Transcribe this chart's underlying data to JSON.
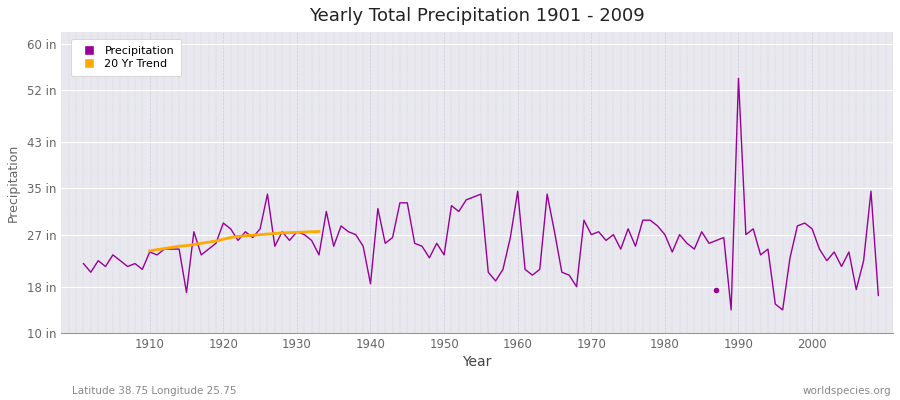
{
  "title": "Yearly Total Precipitation 1901 - 2009",
  "xlabel": "Year",
  "ylabel": "Precipitation",
  "subtitle": "Latitude 38.75 Longitude 25.75",
  "watermark": "worldspecies.org",
  "ylim": [
    10,
    62
  ],
  "yticks": [
    10,
    18,
    27,
    35,
    43,
    52,
    60
  ],
  "ytick_labels": [
    "10 in",
    "18 in",
    "27 in",
    "35 in",
    "43 in",
    "52 in",
    "60 in"
  ],
  "xlim": [
    1898,
    2011
  ],
  "xticks": [
    1910,
    1920,
    1930,
    1940,
    1950,
    1960,
    1970,
    1980,
    1990,
    2000
  ],
  "precip_color": "#990099",
  "trend_color": "#ffaa00",
  "bg_color": "#e8e8ee",
  "fig_color": "#ffffff",
  "years": [
    1901,
    1902,
    1903,
    1904,
    1905,
    1906,
    1907,
    1908,
    1909,
    1910,
    1911,
    1912,
    1913,
    1914,
    1915,
    1916,
    1917,
    1918,
    1919,
    1920,
    1921,
    1922,
    1923,
    1924,
    1925,
    1926,
    1927,
    1928,
    1929,
    1930,
    1931,
    1932,
    1933,
    1934,
    1935,
    1936,
    1937,
    1938,
    1939,
    1940,
    1941,
    1942,
    1943,
    1944,
    1945,
    1946,
    1947,
    1948,
    1949,
    1950,
    1951,
    1952,
    1953,
    1954,
    1955,
    1956,
    1957,
    1958,
    1959,
    1960,
    1961,
    1962,
    1963,
    1964,
    1965,
    1966,
    1967,
    1968,
    1969,
    1970,
    1971,
    1972,
    1973,
    1974,
    1975,
    1976,
    1977,
    1978,
    1979,
    1980,
    1981,
    1982,
    1983,
    1984,
    1985,
    1986,
    1987,
    1988,
    1989,
    1990,
    1991,
    1992,
    1993,
    1994,
    1995,
    1996,
    1997,
    1998,
    1999,
    2000,
    2001,
    2002,
    2003,
    2004,
    2005,
    2006,
    2007,
    2008,
    2009
  ],
  "precip_in": [
    22.0,
    20.5,
    22.5,
    21.5,
    23.5,
    22.5,
    21.5,
    22.0,
    21.0,
    24.0,
    23.5,
    24.5,
    24.5,
    24.5,
    17.0,
    27.5,
    23.5,
    24.5,
    25.5,
    29.0,
    28.0,
    26.0,
    27.5,
    26.5,
    28.0,
    34.0,
    25.0,
    27.5,
    26.0,
    27.5,
    27.0,
    26.0,
    23.5,
    31.0,
    25.0,
    28.5,
    27.5,
    27.0,
    25.0,
    18.5,
    31.5,
    25.5,
    26.5,
    32.5,
    32.5,
    25.5,
    25.0,
    23.0,
    25.5,
    23.5,
    32.0,
    31.0,
    33.0,
    33.5,
    34.0,
    20.5,
    19.0,
    21.0,
    26.5,
    34.5,
    21.0,
    20.0,
    21.0,
    34.0,
    27.5,
    20.5,
    20.0,
    18.0,
    29.5,
    27.0,
    27.5,
    26.0,
    27.0,
    24.5,
    28.0,
    25.0,
    29.5,
    29.5,
    28.5,
    27.0,
    24.0,
    27.0,
    25.5,
    24.5,
    27.5,
    25.5,
    26.0,
    26.5,
    14.0,
    54.0,
    27.0,
    28.0,
    23.5,
    24.5,
    15.0,
    14.0,
    23.0,
    28.5,
    29.0,
    28.0,
    24.5,
    22.5,
    24.0,
    21.5,
    24.0,
    17.5,
    22.5,
    34.5,
    16.5
  ],
  "trend_years": [
    1910,
    1911,
    1912,
    1913,
    1914,
    1915,
    1916,
    1917,
    1918,
    1919,
    1920,
    1921,
    1922,
    1923,
    1924,
    1925,
    1926,
    1927,
    1928,
    1929,
    1930,
    1931,
    1932,
    1933
  ],
  "trend_in": [
    24.2,
    24.4,
    24.6,
    24.8,
    25.0,
    25.1,
    25.3,
    25.5,
    25.7,
    25.9,
    26.2,
    26.5,
    26.7,
    26.8,
    26.9,
    27.0,
    27.1,
    27.2,
    27.3,
    27.35,
    27.4,
    27.45,
    27.5,
    27.55
  ]
}
